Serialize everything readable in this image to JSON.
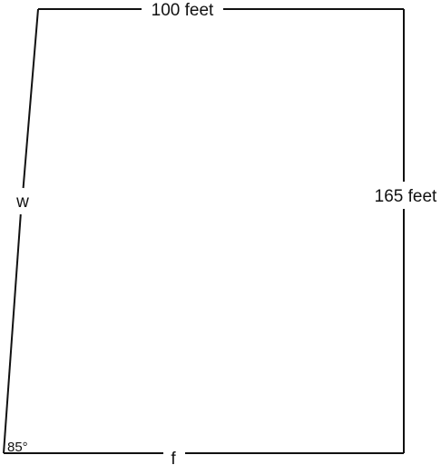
{
  "labels": {
    "top": "100 feet",
    "right": "165 feet",
    "left": "w",
    "bottom": "f",
    "angle": "85°"
  },
  "colors": {
    "line": "#111111",
    "background": "#ffffff"
  }
}
